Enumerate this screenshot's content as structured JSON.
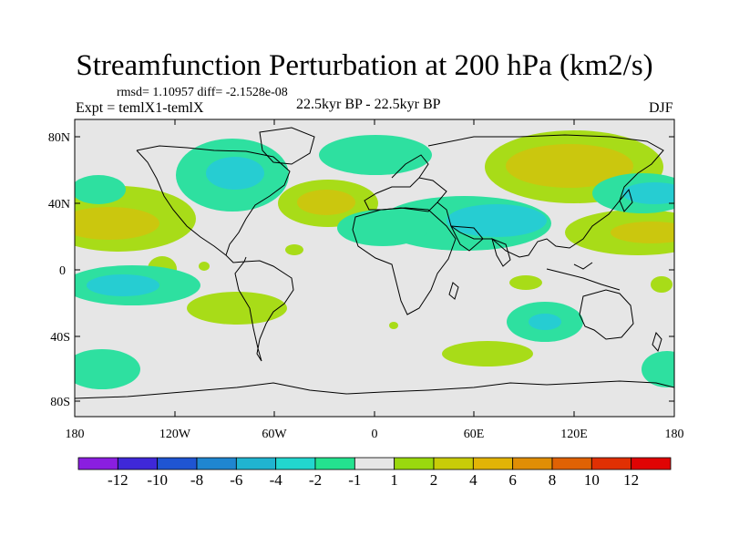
{
  "title": "Streamfunction Perturbation at 200 hPa (km2/s)",
  "stats": "rmsd= 1.10957 diff= -2.1528e-08",
  "experiment": "Expt = temlX1-temlX",
  "period": "22.5kyr BP - 22.5kyr BP",
  "season": "DJF",
  "axes": {
    "lon_labels": [
      "180",
      "120W",
      "60W",
      "0",
      "60E",
      "120E",
      "180"
    ],
    "lat_labels": [
      "80N",
      "40N",
      "0",
      "40S",
      "80S"
    ]
  },
  "colorbar": {
    "labels": [
      "-12",
      "-10",
      "-8",
      "-6",
      "-4",
      "-2",
      "-1",
      "1",
      "2",
      "4",
      "6",
      "8",
      "10",
      "12"
    ],
    "colors": [
      "#8a1ee0",
      "#3f28d8",
      "#1f55d2",
      "#1f86d0",
      "#20b4d0",
      "#22d6cf",
      "#24e28f",
      "#e6e6e6",
      "#9ad80e",
      "#c8cc08",
      "#e2b406",
      "#e08e05",
      "#e06204",
      "#e03003",
      "#e00404"
    ]
  },
  "map_colors": {
    "background": "#e6e6e6",
    "pos_1": "#a8dc18",
    "pos_2": "#cbc70e",
    "neg_1": "#2ee0a0",
    "neg_2": "#26cdd2"
  }
}
